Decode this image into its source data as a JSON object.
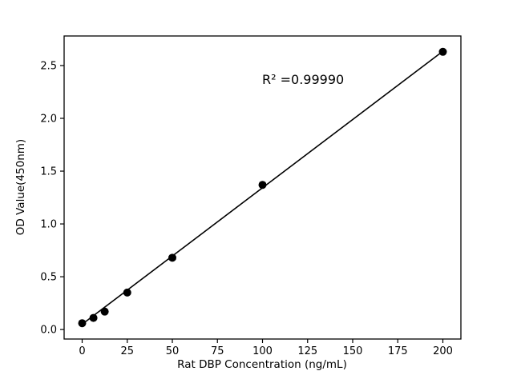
{
  "chart_data": {
    "type": "scatter",
    "title": "",
    "xlabel": "Rat DBP Concentration (ng/mL)",
    "ylabel": "OD Value(450nm)",
    "annotation": "R² =0.99990",
    "x": [
      0,
      6.25,
      12.5,
      25,
      50,
      100,
      200
    ],
    "y": [
      0.06,
      0.11,
      0.17,
      0.35,
      0.68,
      1.37,
      2.63
    ],
    "fit_line": {
      "x": [
        0,
        200
      ],
      "y": [
        0.05,
        2.635
      ]
    },
    "xticks": [
      0,
      25,
      50,
      75,
      100,
      125,
      150,
      175,
      200
    ],
    "yticks": [
      0.0,
      0.5,
      1.0,
      1.5,
      2.0,
      2.5
    ],
    "xlim": [
      -10,
      210
    ],
    "ylim": [
      -0.09,
      2.78
    ],
    "grid": false,
    "legend": "none",
    "colors": {
      "line": "#000000",
      "marker": "#000000",
      "axis": "#000000",
      "background": "#ffffff"
    }
  }
}
